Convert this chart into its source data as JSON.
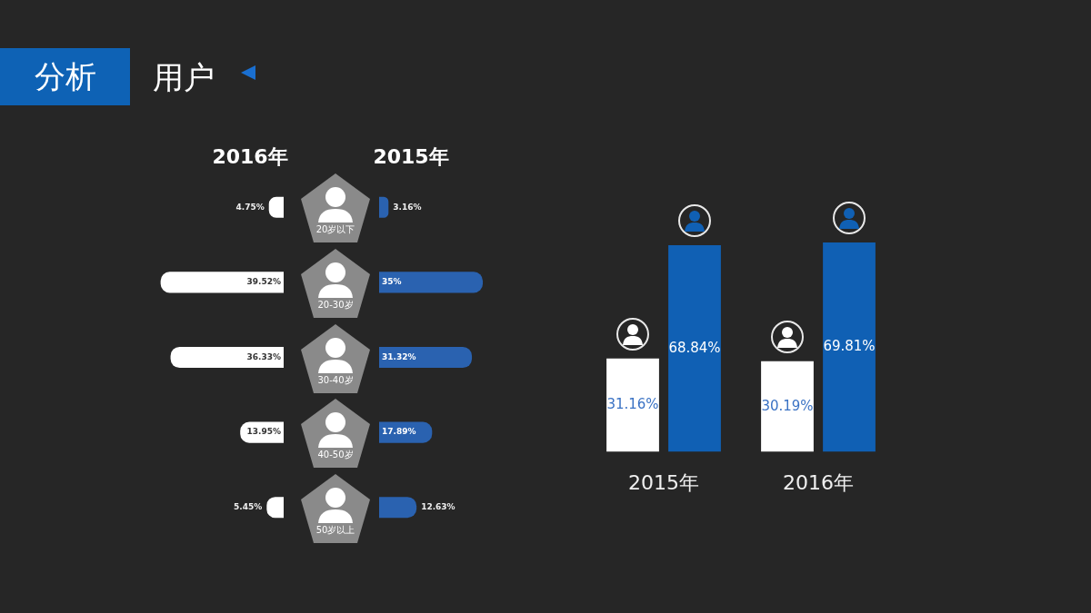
{
  "chart_data": [
    {
      "type": "other",
      "title": "用户",
      "annotations": [
        "分析"
      ]
    },
    {
      "type": "bar",
      "orientation": "horizontal",
      "title": "2016年",
      "categories": [
        "20岁以下",
        "20-30岁",
        "30-40岁",
        "40-50岁",
        "50岁以上"
      ],
      "values": [
        4.75,
        39.52,
        36.33,
        13.95,
        5.45
      ],
      "value_labels": [
        "4.75%",
        "39.52%",
        "36.33%",
        "13.95%",
        "5.45%"
      ],
      "color": "#ffffff",
      "xlim": [
        40,
        0
      ],
      "tick_labels": false
    },
    {
      "type": "bar",
      "orientation": "horizontal",
      "title": "2015年",
      "categories": [
        null,
        null,
        null,
        null,
        null
      ],
      "values": [
        3.16,
        35,
        31.32,
        17.89,
        12.63
      ],
      "value_labels": [
        "3.16%",
        "35%",
        "31.32%",
        "17.89%",
        "12.63%"
      ],
      "color": "#2a62b0",
      "tick_labels": false
    },
    {
      "type": "bar",
      "categories": [
        "2015年",
        "2016年"
      ],
      "tick_labels": "x",
      "series": [
        {
          "color": "#ffffff",
          "values": [
            31.16,
            30.19
          ],
          "value_labels": [
            "31.16%",
            "30.19%"
          ]
        },
        {
          "color": "#1060b4",
          "values": [
            68.84,
            69.81
          ],
          "value_labels": [
            "68.84%",
            "69.81%"
          ]
        }
      ]
    }
  ]
}
